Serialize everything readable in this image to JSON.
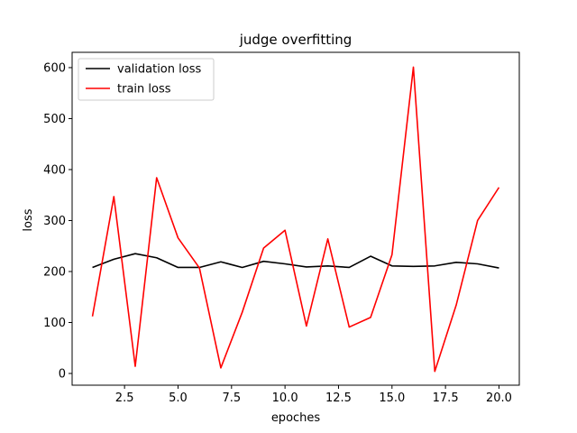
{
  "chart_data": {
    "type": "line",
    "title": "judge overfitting",
    "xlabel": "epoches",
    "ylabel": "loss",
    "xlim": [
      0.05,
      20.95
    ],
    "ylim": [
      -23,
      630
    ],
    "xticks": [
      2.5,
      5.0,
      7.5,
      10.0,
      12.5,
      15.0,
      17.5,
      20.0
    ],
    "xtick_labels": [
      "2.5",
      "5.0",
      "7.5",
      "10.0",
      "12.5",
      "15.0",
      "17.5",
      "20.0"
    ],
    "yticks": [
      0,
      100,
      200,
      300,
      400,
      500,
      600
    ],
    "ytick_labels": [
      "0",
      "100",
      "200",
      "300",
      "400",
      "500",
      "600"
    ],
    "grid": false,
    "legend_position": "top-left",
    "x": [
      1,
      2,
      3,
      4,
      5,
      6,
      7,
      8,
      9,
      10,
      11,
      12,
      13,
      14,
      15,
      16,
      17,
      18,
      19,
      20
    ],
    "series": [
      {
        "name": "validation loss",
        "color": "#000000",
        "values": [
          208,
          224,
          235,
          227,
          208,
          208,
          219,
          208,
          220,
          215,
          209,
          211,
          208,
          230,
          211,
          210,
          211,
          218,
          215,
          207
        ]
      },
      {
        "name": "train loss",
        "color": "#ff0000",
        "values": [
          112,
          347,
          14,
          384,
          266,
          207,
          11,
          120,
          246,
          281,
          93,
          264,
          91,
          110,
          233,
          601,
          4,
          134,
          300,
          365
        ]
      }
    ]
  }
}
